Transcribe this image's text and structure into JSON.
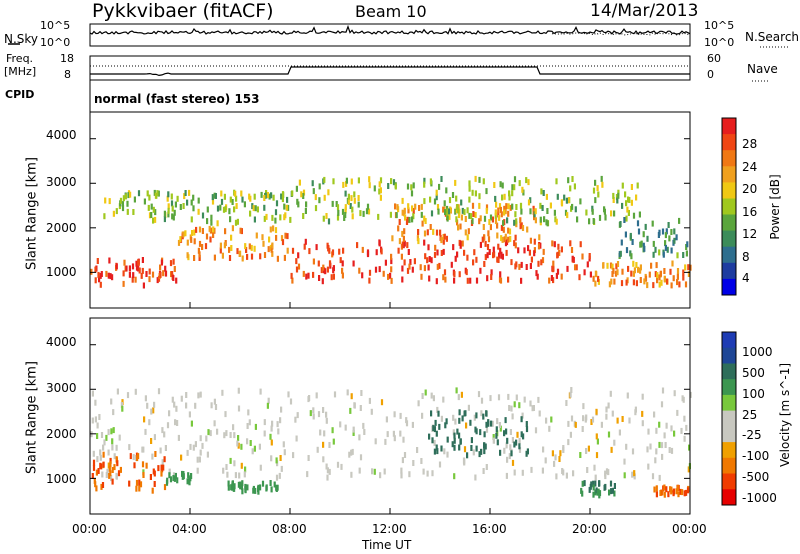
{
  "header": {
    "station": "Pykkvibaer (fitACF)",
    "beam": "Beam 10",
    "date": "14/Mar/2013"
  },
  "noise_panel": {
    "left_label": "N.Sky",
    "left_ticks": [
      "10^5",
      "10^0"
    ],
    "right_label": "N.Search",
    "right_ticks": [
      "10^5",
      "10^0"
    ]
  },
  "freq_panel": {
    "left_label_top": "Freq.",
    "left_label_bottom": "[MHz]",
    "left_ticks": [
      "18",
      "8"
    ],
    "right_label": "Nave",
    "right_ticks": [
      "60",
      "0"
    ]
  },
  "cpid": {
    "label": "CPID",
    "mode": "normal (fast stereo) 153"
  },
  "colors": {
    "power_scale": [
      "#0000e6",
      "#1e3ca0",
      "#2e6e8e",
      "#3c8c5a",
      "#5aa53c",
      "#a0c81e",
      "#f0c814",
      "#f0a01e",
      "#f07814",
      "#f04614",
      "#e61e1e"
    ],
    "velocity_scale": [
      "#e60000",
      "#f03c00",
      "#f07800",
      "#f0a000",
      "#c8c8c0",
      "#c8c8c0",
      "#78c83c",
      "#3c9650",
      "#2e6e5a",
      "#1e4696",
      "#1e3cb4"
    ]
  },
  "chart_data": [
    {
      "type": "heatmap",
      "name": "power",
      "ylabel": "Slant Range [km]",
      "yticks": [
        "4000",
        "3000",
        "2000",
        "1000"
      ],
      "ylim": [
        200,
        4600
      ],
      "colorbar_label": "Power [dB]",
      "colorbar_ticks": [
        "28",
        "24",
        "20",
        "16",
        "12",
        "8",
        "4"
      ],
      "colorbar_range": [
        0,
        30
      ],
      "bands": [
        {
          "t0": 0.0,
          "t1": 3.5,
          "r0": 700,
          "r1": 1300,
          "value": 27
        },
        {
          "t0": 3.5,
          "t1": 8.0,
          "r0": 1300,
          "r1": 2000,
          "value": 22
        },
        {
          "t0": 8.0,
          "t1": 20.0,
          "r0": 800,
          "r1": 1700,
          "value": 27
        },
        {
          "t0": 12.0,
          "t1": 18.0,
          "r0": 1700,
          "r1": 2500,
          "value": 22
        },
        {
          "t0": 0.5,
          "t1": 8.0,
          "r0": 2100,
          "r1": 2800,
          "value": 14
        },
        {
          "t0": 8.0,
          "t1": 22.0,
          "r0": 2100,
          "r1": 3100,
          "value": 14
        },
        {
          "t0": 20.0,
          "t1": 24.0,
          "r0": 700,
          "r1": 1200,
          "value": 22
        },
        {
          "t0": 21.0,
          "t1": 24.0,
          "r0": 1300,
          "r1": 2200,
          "value": 10
        }
      ]
    },
    {
      "type": "heatmap",
      "name": "velocity",
      "ylabel": "Slant Range [km]",
      "yticks": [
        "4000",
        "3000",
        "2000",
        "1000"
      ],
      "ylim": [
        200,
        4600
      ],
      "xlabel": "Time UT",
      "xticks": [
        "00:00",
        "04:00",
        "08:00",
        "12:00",
        "16:00",
        "20:00",
        "00:00"
      ],
      "colorbar_label": "Velocity [m s^-1]",
      "colorbar_ticks": [
        "1000",
        "500",
        "100",
        "25",
        "-25",
        "-100",
        "-500",
        "-1000"
      ],
      "bands": [
        {
          "t0": 0.0,
          "t1": 24.0,
          "r0": 1000,
          "r1": 3000,
          "value": 0
        },
        {
          "t0": 0.0,
          "t1": 3.0,
          "r0": 700,
          "r1": 1600,
          "value": -300
        },
        {
          "t0": 3.0,
          "t1": 4.0,
          "r0": 900,
          "r1": 1100,
          "value": 150
        },
        {
          "t0": 5.5,
          "t1": 7.5,
          "r0": 700,
          "r1": 900,
          "value": 150
        },
        {
          "t0": 13.5,
          "t1": 17.5,
          "r0": 1500,
          "r1": 2500,
          "value": 400
        },
        {
          "t0": 19.5,
          "t1": 21.0,
          "r0": 600,
          "r1": 900,
          "value": 300
        },
        {
          "t0": 22.5,
          "t1": 24.0,
          "r0": 600,
          "r1": 800,
          "value": -300
        }
      ]
    }
  ]
}
